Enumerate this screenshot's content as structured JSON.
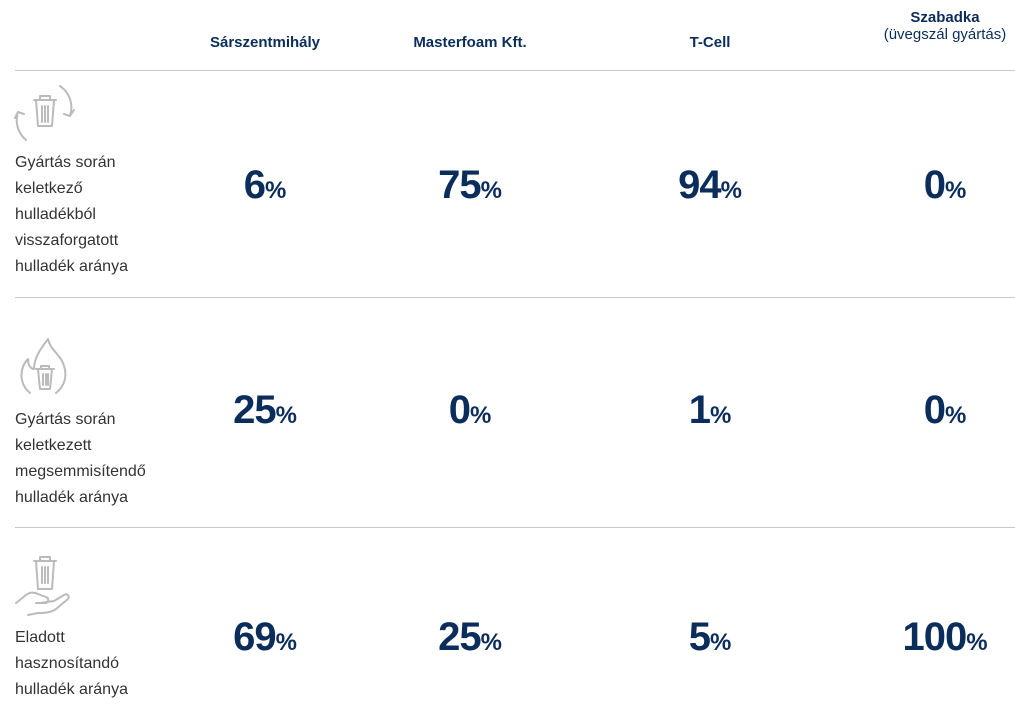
{
  "header": {
    "columns": [
      {
        "title": "Sárszentmihály"
      },
      {
        "title": "Masterfoam Kft."
      },
      {
        "title": "T-Cell"
      },
      {
        "title": "Szabadka",
        "subtitle": "(üvegszál gyártás)"
      }
    ]
  },
  "table": {
    "rows": [
      {
        "label": [
          "Gyártás során",
          "keletkező",
          "hulladékból",
          "visszaforgatott",
          "hulladék aránya"
        ],
        "cells": [
          {
            "number": 6,
            "unit": "%"
          },
          {
            "number": 75,
            "unit": "%"
          },
          {
            "number": 94,
            "unit": "%"
          },
          {
            "number": 0,
            "unit": "%"
          }
        ]
      },
      {
        "label": [
          "Gyártás során",
          "keletkezett",
          "megsemmisítendő",
          "hulladék aránya"
        ],
        "cells": [
          {
            "number": 25,
            "unit": "%"
          },
          {
            "number": 0,
            "unit": "%"
          },
          {
            "number": 1,
            "unit": "%"
          },
          {
            "number": 0,
            "unit": "%"
          }
        ]
      },
      {
        "label": [
          "Eladott",
          "hasznosítandó",
          "hulladék aránya"
        ],
        "cells": [
          {
            "number": 69,
            "unit": "%"
          },
          {
            "number": 25,
            "unit": "%"
          },
          {
            "number": 5,
            "unit": "%"
          },
          {
            "number": 100,
            "unit": "%"
          }
        ]
      }
    ]
  }
}
